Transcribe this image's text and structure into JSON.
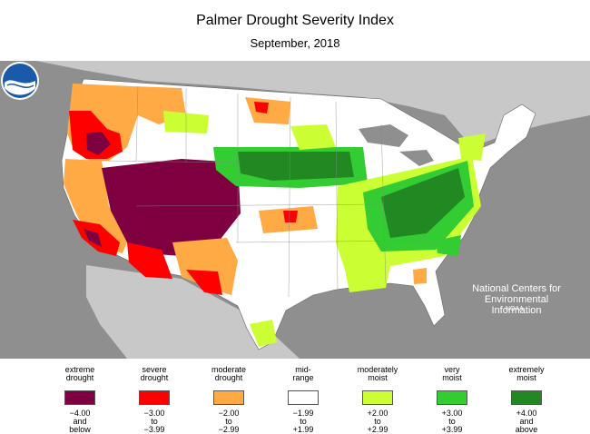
{
  "title": "Palmer Drought Severity Index",
  "subtitle": "September, 2018",
  "organization": {
    "logo_text": "NOAA",
    "line1": "National Centers for",
    "line2": "Environmental",
    "line3": "Information"
  },
  "colors": {
    "background": "#8f8f8f",
    "extreme_drought": "#7f0040",
    "severe_drought": "#ff0000",
    "moderate_drought": "#ffaa44",
    "mid_range": "#ffffff",
    "moderately_moist": "#ccff33",
    "very_moist": "#33cc33",
    "extremely_moist": "#228822"
  },
  "legend": [
    {
      "label1": "extreme",
      "label2": "drought",
      "range1": "−4.00",
      "range2": "and",
      "range3": "below",
      "color": "#7f0040"
    },
    {
      "label1": "severe",
      "label2": "drought",
      "range1": "−3.00",
      "range2": "to",
      "range3": "−3.99",
      "color": "#ff0000"
    },
    {
      "label1": "moderate",
      "label2": "drought",
      "range1": "−2.00",
      "range2": "to",
      "range3": "−2.99",
      "color": "#ffaa44"
    },
    {
      "label1": "mid-",
      "label2": "range",
      "range1": "−1.99",
      "range2": "to",
      "range3": "+1.99",
      "color": "#ffffff"
    },
    {
      "label1": "moderately",
      "label2": "moist",
      "range1": "+2.00",
      "range2": "to",
      "range3": "+2.99",
      "color": "#ccff33"
    },
    {
      "label1": "very",
      "label2": "moist",
      "range1": "+3.00",
      "range2": "to",
      "range3": "+3.99",
      "color": "#33cc33"
    },
    {
      "label1": "extremely",
      "label2": "moist",
      "range1": "+4.00",
      "range2": "and",
      "range3": "above",
      "color": "#228822"
    }
  ]
}
